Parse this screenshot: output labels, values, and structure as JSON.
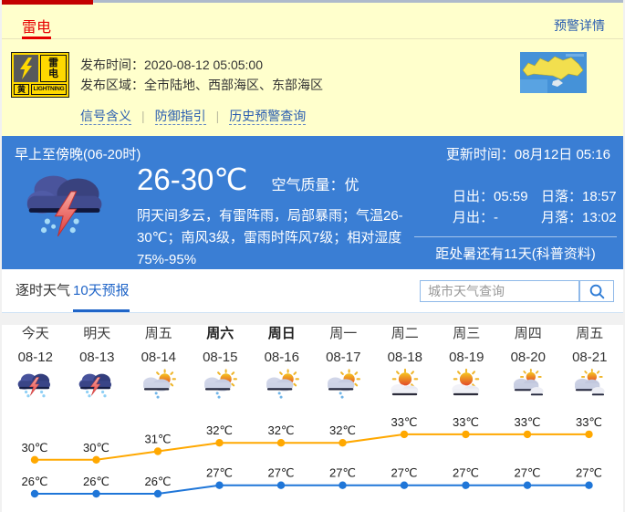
{
  "alert": {
    "tab_label": "雷电",
    "detail_link": "预警详情",
    "icon": {
      "title_lines": [
        "雷",
        "电"
      ],
      "level": "黄",
      "level_en": "LIGHTNING"
    },
    "rows": [
      {
        "label": "发布时间：",
        "value": "2020-08-12 05:05:00"
      },
      {
        "label": "发布区域：",
        "value": "全市陆地、西部海区、东部海区"
      }
    ],
    "links": [
      "信号含义",
      "防御指引",
      "历史预警查询"
    ]
  },
  "current": {
    "period": "早上至傍晚(06-20时)",
    "update_time": "更新时间：08月12日 05:16",
    "temp_range": "26-30℃",
    "air_quality": "空气质量：优",
    "description": "阴天间多云，有雷阵雨，局部暴雨；气温26-30℃；南风3级，雷雨时阵风7级；相对湿度75%-95%",
    "sunrise": "日出：05:59",
    "sunset": "日落：18:57",
    "moonrise": "月出：-",
    "moonset": "月落：13:02",
    "countdown": "距处暑还有11天(科普资料)"
  },
  "tabs": {
    "hourly": "逐时天气",
    "ten_day": "10天预报"
  },
  "search": {
    "placeholder": "城市天气查询"
  },
  "forecast": {
    "days": [
      {
        "name": "今天",
        "date": "08-12",
        "icon": "thunderstorm",
        "weekend": false
      },
      {
        "name": "明天",
        "date": "08-13",
        "icon": "thunderstorm",
        "weekend": false
      },
      {
        "name": "周五",
        "date": "08-14",
        "icon": "shower",
        "weekend": false
      },
      {
        "name": "周六",
        "date": "08-15",
        "icon": "shower",
        "weekend": true
      },
      {
        "name": "周日",
        "date": "08-16",
        "icon": "shower",
        "weekend": true
      },
      {
        "name": "周一",
        "date": "08-17",
        "icon": "shower",
        "weekend": false
      },
      {
        "name": "周二",
        "date": "08-18",
        "icon": "sun-cloud",
        "weekend": false
      },
      {
        "name": "周三",
        "date": "08-19",
        "icon": "sun-cloud",
        "weekend": false
      },
      {
        "name": "周四",
        "date": "08-20",
        "icon": "cloudy",
        "weekend": false
      },
      {
        "name": "周五",
        "date": "08-21",
        "icon": "cloudy",
        "weekend": false
      }
    ]
  },
  "chart_data": {
    "type": "line",
    "categories": [
      "08-12",
      "08-13",
      "08-14",
      "08-15",
      "08-16",
      "08-17",
      "08-18",
      "08-19",
      "08-20",
      "08-21"
    ],
    "series": [
      {
        "name": "high",
        "color": "#FFA800",
        "values": [
          30,
          30,
          31,
          32,
          32,
          32,
          33,
          33,
          33,
          33
        ]
      },
      {
        "name": "low",
        "color": "#1F76D8",
        "values": [
          26,
          26,
          26,
          27,
          27,
          27,
          27,
          27,
          27,
          27
        ]
      }
    ],
    "unit": "℃",
    "grid": false,
    "legend": false,
    "point_labels": true
  },
  "colors": {
    "accent_blue": "#3A7ED4",
    "alert_yellow": "#FFFFCC",
    "alert_red": "#E60000",
    "link_blue": "#2A5DB0",
    "high_line": "#FFA800",
    "low_line": "#1F76D8"
  }
}
